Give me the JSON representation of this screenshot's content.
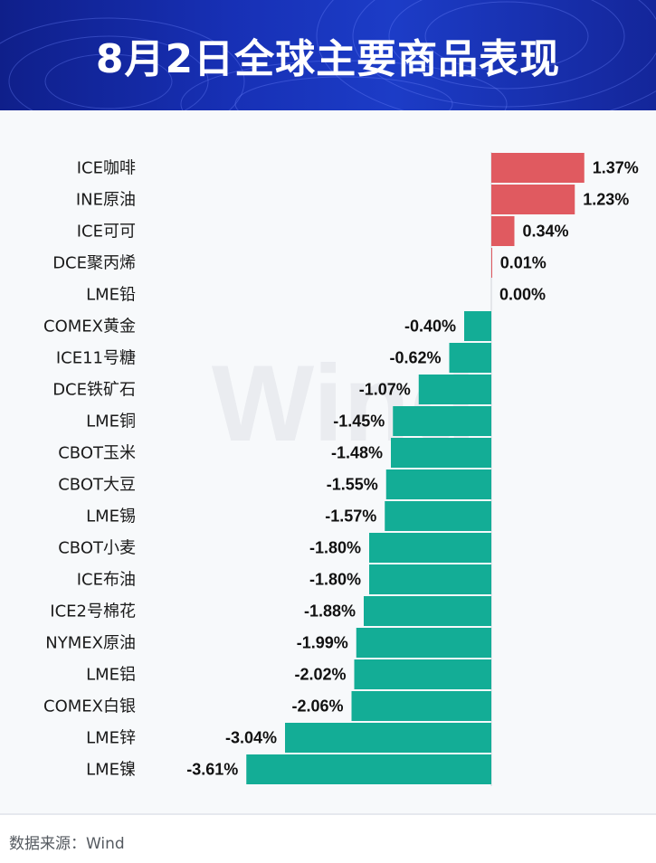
{
  "header": {
    "title": "8月2日全球主要商品表现",
    "bg_color": "#1730b5"
  },
  "footer": {
    "source": "数据来源：Wind"
  },
  "watermark": "Wind",
  "chart_data": {
    "type": "bar",
    "orientation": "horizontal",
    "title": "8月2日全球主要商品表现",
    "unit": "%",
    "categories": [
      "ICE咖啡",
      "INE原油",
      "ICE可可",
      "DCE聚丙烯",
      "LME铅",
      "COMEX黄金",
      "ICE11号糖",
      "DCE铁矿石",
      "LME铜",
      "CBOT玉米",
      "CBOT大豆",
      "LME锡",
      "CBOT小麦",
      "ICE布油",
      "ICE2号棉花",
      "NYMEX原油",
      "LME铝",
      "COMEX白银",
      "LME锌",
      "LME镍"
    ],
    "values": [
      1.37,
      1.23,
      0.34,
      0.01,
      0.0,
      -0.4,
      -0.62,
      -1.07,
      -1.45,
      -1.48,
      -1.55,
      -1.57,
      -1.8,
      -1.8,
      -1.88,
      -1.99,
      -2.02,
      -2.06,
      -3.04,
      -3.61
    ],
    "labels": [
      "1.37%",
      "1.23%",
      "0.34%",
      "0.01%",
      "0.00%",
      "-0.40%",
      "-0.62%",
      "-1.07%",
      "-1.45%",
      "-1.48%",
      "-1.55%",
      "-1.57%",
      "-1.80%",
      "-1.80%",
      "-1.88%",
      "-1.99%",
      "-2.02%",
      "-2.06%",
      "-3.04%",
      "-3.61%"
    ],
    "positive_color": "#e05a60",
    "negative_color": "#13ad96",
    "xlim": [
      -3.61,
      1.37
    ],
    "grid": false
  }
}
